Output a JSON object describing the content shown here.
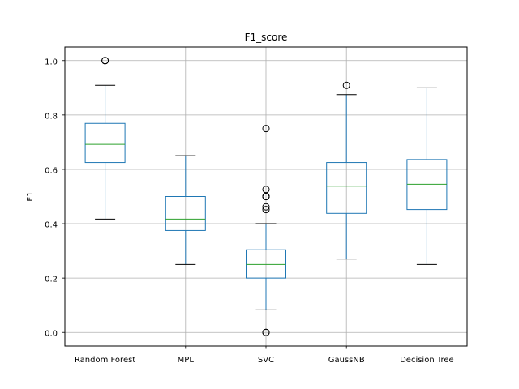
{
  "chart_data": {
    "type": "box",
    "title": "F1_score",
    "xlabel": "",
    "ylabel": "F1",
    "ylim": [
      -0.05,
      1.05
    ],
    "yticks": [
      0.0,
      0.2,
      0.4,
      0.6,
      0.8,
      1.0
    ],
    "ytick_labels": [
      "0.0",
      "0.2",
      "0.4",
      "0.6",
      "0.8",
      "1.0"
    ],
    "grid": true,
    "categories": [
      "Random Forest",
      "MPL",
      "SVC",
      "GaussNB",
      "Decision Tree"
    ],
    "boxes": [
      {
        "name": "Random Forest",
        "whislo": 0.417,
        "q1": 0.625,
        "med": 0.692,
        "q3": 0.769,
        "whishi": 0.909,
        "fliers": [
          1.0,
          1.0
        ]
      },
      {
        "name": "MPL",
        "whislo": 0.25,
        "q1": 0.375,
        "med": 0.417,
        "q3": 0.5,
        "whishi": 0.65,
        "fliers": []
      },
      {
        "name": "SVC",
        "whislo": 0.083,
        "q1": 0.2,
        "med": 0.25,
        "q3": 0.304,
        "whishi": 0.4,
        "fliers": [
          0.75,
          0.526,
          0.5,
          0.5,
          0.5,
          0.462,
          0.452,
          0.0,
          0.0
        ]
      },
      {
        "name": "GaussNB",
        "whislo": 0.27,
        "q1": 0.438,
        "med": 0.538,
        "q3": 0.625,
        "whishi": 0.875,
        "fliers": [
          0.909
        ]
      },
      {
        "name": "Decision Tree",
        "whislo": 0.25,
        "q1": 0.452,
        "med": 0.545,
        "q3": 0.636,
        "whishi": 0.9,
        "fliers": []
      }
    ],
    "colors": {
      "box": "#1f77b4",
      "median": "#2ca02c",
      "whisker_cap": "#000000",
      "flier": "#000000",
      "grid": "#b0b0b0",
      "axes": "#000000"
    }
  }
}
